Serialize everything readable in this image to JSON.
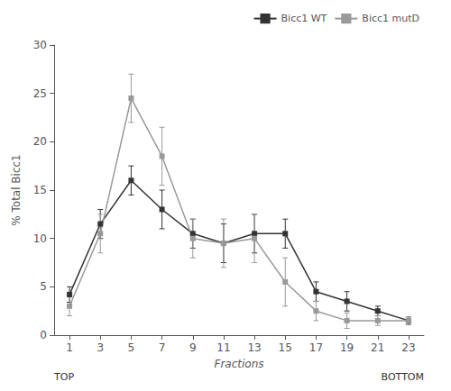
{
  "chart_data": {
    "type": "line",
    "x_label": "Fractions",
    "y_label": "% Total Bicc1",
    "annotations": [
      "TOP",
      "BOTTOM"
    ],
    "x": [
      1,
      3,
      5,
      7,
      9,
      11,
      13,
      15,
      17,
      19,
      21,
      23
    ],
    "xlim": [
      0,
      24
    ],
    "xticks": [
      1,
      3,
      5,
      7,
      9,
      11,
      13,
      15,
      17,
      19,
      21,
      23
    ],
    "ylim": [
      0,
      30
    ],
    "yticks": [
      0,
      5,
      10,
      15,
      20,
      25,
      30
    ],
    "grid": false,
    "legend": "upper right",
    "series": [
      {
        "name": "Bicc1 WT",
        "color": "#333333",
        "marker": "square",
        "line_style": "solid",
        "values": [
          4.2,
          11.5,
          16.0,
          13.0,
          10.5,
          9.5,
          10.5,
          10.5,
          4.5,
          3.5,
          2.5,
          1.5
        ],
        "errors": [
          0.8,
          1.5,
          1.5,
          2.0,
          1.5,
          2.0,
          2.0,
          1.5,
          1.0,
          1.0,
          0.5,
          0.4
        ]
      },
      {
        "name": "Bicc1 mutD",
        "color": "#999999",
        "marker": "square",
        "line_style": "solid",
        "values": [
          3.0,
          10.5,
          24.5,
          18.5,
          10.0,
          9.5,
          10.0,
          5.5,
          2.5,
          1.5,
          1.5,
          1.5
        ],
        "errors": [
          1.0,
          2.0,
          2.5,
          3.0,
          2.0,
          2.5,
          2.5,
          2.5,
          1.0,
          0.8,
          0.5,
          0.4
        ]
      }
    ]
  }
}
